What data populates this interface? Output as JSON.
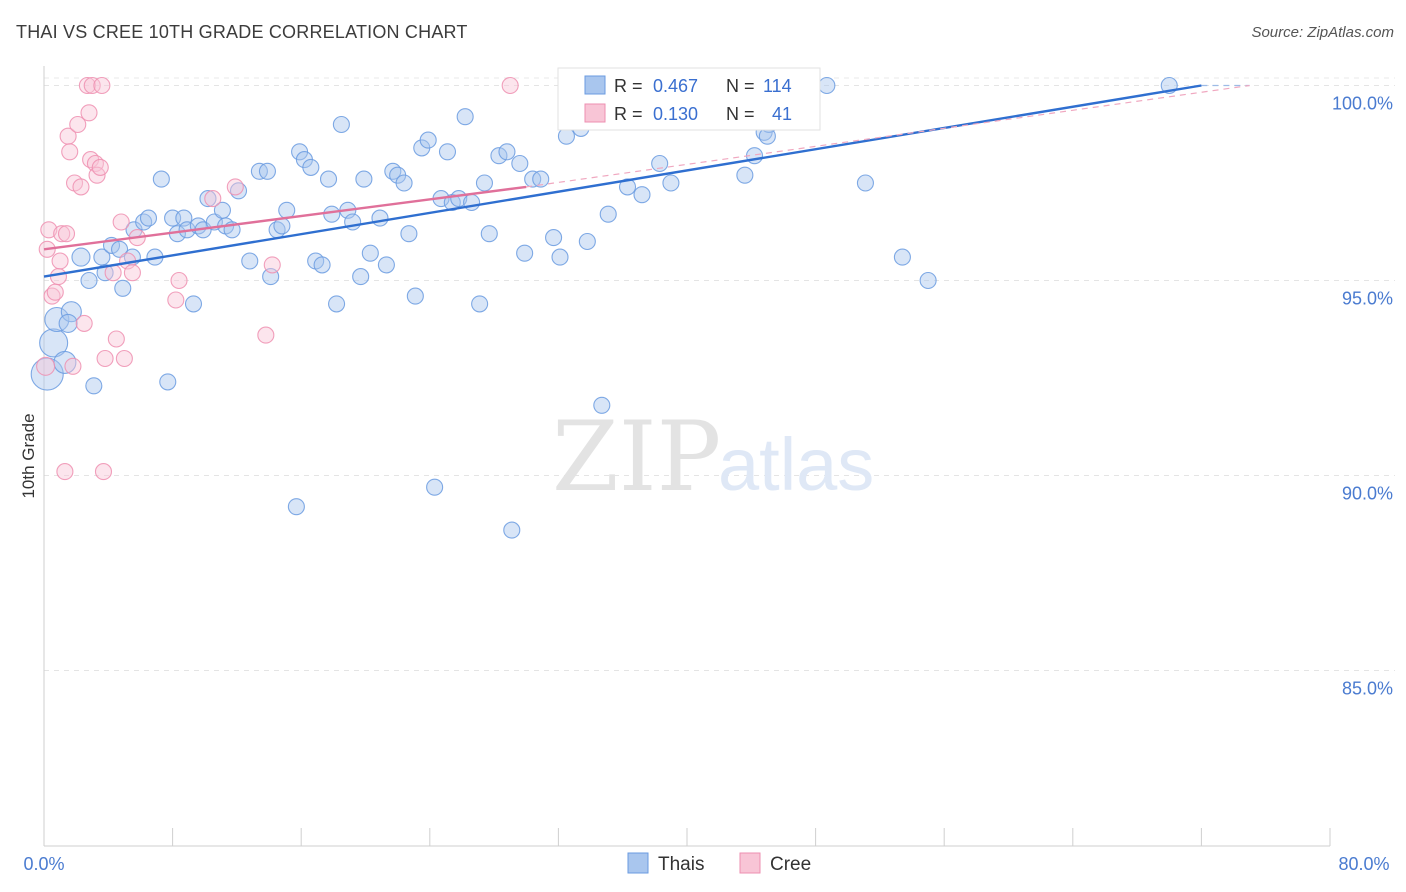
{
  "chart_data": {
    "type": "scatter",
    "title": "THAI VS CREE 10TH GRADE CORRELATION CHART",
    "source": "Source: ZipAtlas.com",
    "ylabel": "10th Grade",
    "xlim": [
      0,
      80
    ],
    "ylim": [
      80.5,
      100.5
    ],
    "x_tick_labels": [
      "0.0%",
      "80.0%"
    ],
    "y_ticks": [
      85,
      90,
      95,
      100
    ],
    "y_tick_labels": [
      "85.0%",
      "90.0%",
      "95.0%",
      "100.0%"
    ],
    "watermark": {
      "zip": "ZIP",
      "atlas": "atlas"
    },
    "legend": {
      "r_label": "R =",
      "n_label": "N =",
      "entries": [
        {
          "r": "0.467",
          "n": "114"
        },
        {
          "r": "0.130",
          "n": "41"
        }
      ]
    },
    "series": [
      {
        "name": "Thais",
        "color": "#6a9be0",
        "fill": "#a9c6ee",
        "trend": {
          "x0": 0,
          "y0": 95.1,
          "x1": 72,
          "y1": 100.0,
          "dash_to_x": 75,
          "dash_to_y": 100.0
        },
        "points": [
          [
            0.2,
            92.6,
            16
          ],
          [
            0.6,
            93.4,
            14
          ],
          [
            0.8,
            94.0,
            12
          ],
          [
            1.3,
            92.9,
            11
          ],
          [
            1.7,
            94.2,
            10
          ],
          [
            1.5,
            93.9,
            9
          ],
          [
            2.3,
            95.6,
            9
          ],
          [
            2.8,
            95.0,
            8
          ],
          [
            3.1,
            92.3,
            8
          ],
          [
            3.6,
            95.6,
            8
          ],
          [
            3.8,
            95.2,
            8
          ],
          [
            4.2,
            95.9,
            8
          ],
          [
            4.7,
            95.8,
            8
          ],
          [
            4.9,
            94.8,
            8
          ],
          [
            5.5,
            95.6,
            8
          ],
          [
            5.6,
            96.3,
            8
          ],
          [
            6.2,
            96.5,
            8
          ],
          [
            6.5,
            96.6,
            8
          ],
          [
            6.9,
            95.6,
            8
          ],
          [
            7.3,
            97.6,
            8
          ],
          [
            7.7,
            92.4,
            8
          ],
          [
            8.0,
            96.6,
            8
          ],
          [
            8.3,
            96.2,
            8
          ],
          [
            8.7,
            96.6,
            8
          ],
          [
            8.9,
            96.3,
            8
          ],
          [
            9.3,
            94.4,
            8
          ],
          [
            9.6,
            96.4,
            8
          ],
          [
            9.9,
            96.3,
            8
          ],
          [
            10.2,
            97.1,
            8
          ],
          [
            10.6,
            96.5,
            8
          ],
          [
            11.1,
            96.8,
            8
          ],
          [
            11.3,
            96.4,
            8
          ],
          [
            11.7,
            96.3,
            8
          ],
          [
            12.1,
            97.3,
            8
          ],
          [
            12.8,
            95.5,
            8
          ],
          [
            13.4,
            97.8,
            8
          ],
          [
            13.9,
            97.8,
            8
          ],
          [
            14.1,
            95.1,
            8
          ],
          [
            14.5,
            96.3,
            8
          ],
          [
            14.8,
            96.4,
            8
          ],
          [
            15.1,
            96.8,
            8
          ],
          [
            15.7,
            89.2,
            8
          ],
          [
            15.9,
            98.3,
            8
          ],
          [
            16.2,
            98.1,
            8
          ],
          [
            16.6,
            97.9,
            8
          ],
          [
            16.9,
            95.5,
            8
          ],
          [
            17.3,
            95.4,
            8
          ],
          [
            17.7,
            97.6,
            8
          ],
          [
            17.9,
            96.7,
            8
          ],
          [
            18.2,
            94.4,
            8
          ],
          [
            18.5,
            99.0,
            8
          ],
          [
            18.9,
            96.8,
            8
          ],
          [
            19.2,
            96.5,
            8
          ],
          [
            19.7,
            95.1,
            8
          ],
          [
            19.9,
            97.6,
            8
          ],
          [
            20.3,
            95.7,
            8
          ],
          [
            20.9,
            96.6,
            8
          ],
          [
            21.3,
            95.4,
            8
          ],
          [
            21.7,
            97.8,
            8
          ],
          [
            22.0,
            97.7,
            8
          ],
          [
            22.4,
            97.5,
            8
          ],
          [
            22.7,
            96.2,
            8
          ],
          [
            23.1,
            94.6,
            8
          ],
          [
            23.5,
            98.4,
            8
          ],
          [
            23.9,
            98.6,
            8
          ],
          [
            24.3,
            89.7,
            8
          ],
          [
            24.7,
            97.1,
            8
          ],
          [
            25.1,
            98.3,
            8
          ],
          [
            25.4,
            97.0,
            8
          ],
          [
            25.8,
            97.1,
            8
          ],
          [
            26.2,
            99.2,
            8
          ],
          [
            26.6,
            97.0,
            8
          ],
          [
            27.1,
            94.4,
            8
          ],
          [
            27.4,
            97.5,
            8
          ],
          [
            27.7,
            96.2,
            8
          ],
          [
            28.3,
            98.2,
            8
          ],
          [
            28.8,
            98.3,
            8
          ],
          [
            29.1,
            88.6,
            8
          ],
          [
            29.6,
            98.0,
            8
          ],
          [
            29.9,
            95.7,
            8
          ],
          [
            30.4,
            97.6,
            8
          ],
          [
            30.9,
            97.6,
            8
          ],
          [
            31.7,
            96.1,
            8
          ],
          [
            32.1,
            95.6,
            8
          ],
          [
            32.5,
            98.7,
            8
          ],
          [
            32.9,
            100.0,
            8
          ],
          [
            33.4,
            98.9,
            8
          ],
          [
            33.8,
            96.0,
            8
          ],
          [
            34.3,
            99.8,
            8
          ],
          [
            34.7,
            91.8,
            8
          ],
          [
            35.1,
            96.7,
            8
          ],
          [
            35.8,
            99.6,
            8
          ],
          [
            36.3,
            97.4,
            8
          ],
          [
            36.6,
            99.2,
            8
          ],
          [
            37.2,
            97.2,
            8
          ],
          [
            38.0,
            99.9,
            8
          ],
          [
            38.3,
            98.0,
            8
          ],
          [
            39.0,
            97.5,
            8
          ],
          [
            39.4,
            100.0,
            8
          ],
          [
            41.4,
            99.9,
            8
          ],
          [
            43.6,
            97.7,
            8
          ],
          [
            44.2,
            98.2,
            8
          ],
          [
            44.8,
            98.8,
            8
          ],
          [
            45.1,
            99.0,
            8
          ],
          [
            45.0,
            98.7,
            8
          ],
          [
            48.7,
            100.0,
            8
          ],
          [
            51.1,
            97.5,
            8
          ],
          [
            53.4,
            95.6,
            8
          ],
          [
            55.0,
            95.0,
            8
          ],
          [
            70.0,
            100.0,
            8
          ]
        ]
      },
      {
        "name": "Cree",
        "color": "#ee8fb0",
        "fill": "#f8c5d6",
        "trend": {
          "x0": 0,
          "y0": 95.8,
          "x1": 30,
          "y1": 97.4,
          "dash_to_x": 75,
          "dash_to_y": 100.0
        },
        "points": [
          [
            0.1,
            92.8,
            9
          ],
          [
            0.2,
            95.8,
            8
          ],
          [
            0.3,
            96.3,
            8
          ],
          [
            0.5,
            94.6,
            8
          ],
          [
            0.7,
            94.7,
            8
          ],
          [
            0.9,
            95.1,
            8
          ],
          [
            1.0,
            95.5,
            8
          ],
          [
            1.1,
            96.2,
            8
          ],
          [
            1.3,
            90.1,
            8
          ],
          [
            1.4,
            96.2,
            8
          ],
          [
            1.5,
            98.7,
            8
          ],
          [
            1.6,
            98.3,
            8
          ],
          [
            1.8,
            92.8,
            8
          ],
          [
            1.9,
            97.5,
            8
          ],
          [
            2.1,
            99.0,
            8
          ],
          [
            2.3,
            97.4,
            8
          ],
          [
            2.5,
            93.9,
            8
          ],
          [
            2.7,
            100.0,
            8
          ],
          [
            2.8,
            99.3,
            8
          ],
          [
            2.9,
            98.1,
            8
          ],
          [
            3.0,
            100.0,
            8
          ],
          [
            3.2,
            98.0,
            8
          ],
          [
            3.3,
            97.7,
            8
          ],
          [
            3.5,
            97.9,
            8
          ],
          [
            3.6,
            100.0,
            8
          ],
          [
            3.7,
            90.1,
            8
          ],
          [
            3.8,
            93.0,
            8
          ],
          [
            4.3,
            95.2,
            8
          ],
          [
            4.5,
            93.5,
            8
          ],
          [
            4.8,
            96.5,
            8
          ],
          [
            5.0,
            93.0,
            8
          ],
          [
            5.2,
            95.5,
            8
          ],
          [
            5.5,
            95.2,
            8
          ],
          [
            5.8,
            96.1,
            8
          ],
          [
            8.2,
            94.5,
            8
          ],
          [
            8.4,
            95.0,
            8
          ],
          [
            10.5,
            97.1,
            8
          ],
          [
            11.9,
            97.4,
            8
          ],
          [
            13.8,
            93.6,
            8
          ],
          [
            14.2,
            95.4,
            8
          ],
          [
            29.0,
            100.0,
            8
          ]
        ]
      }
    ]
  }
}
